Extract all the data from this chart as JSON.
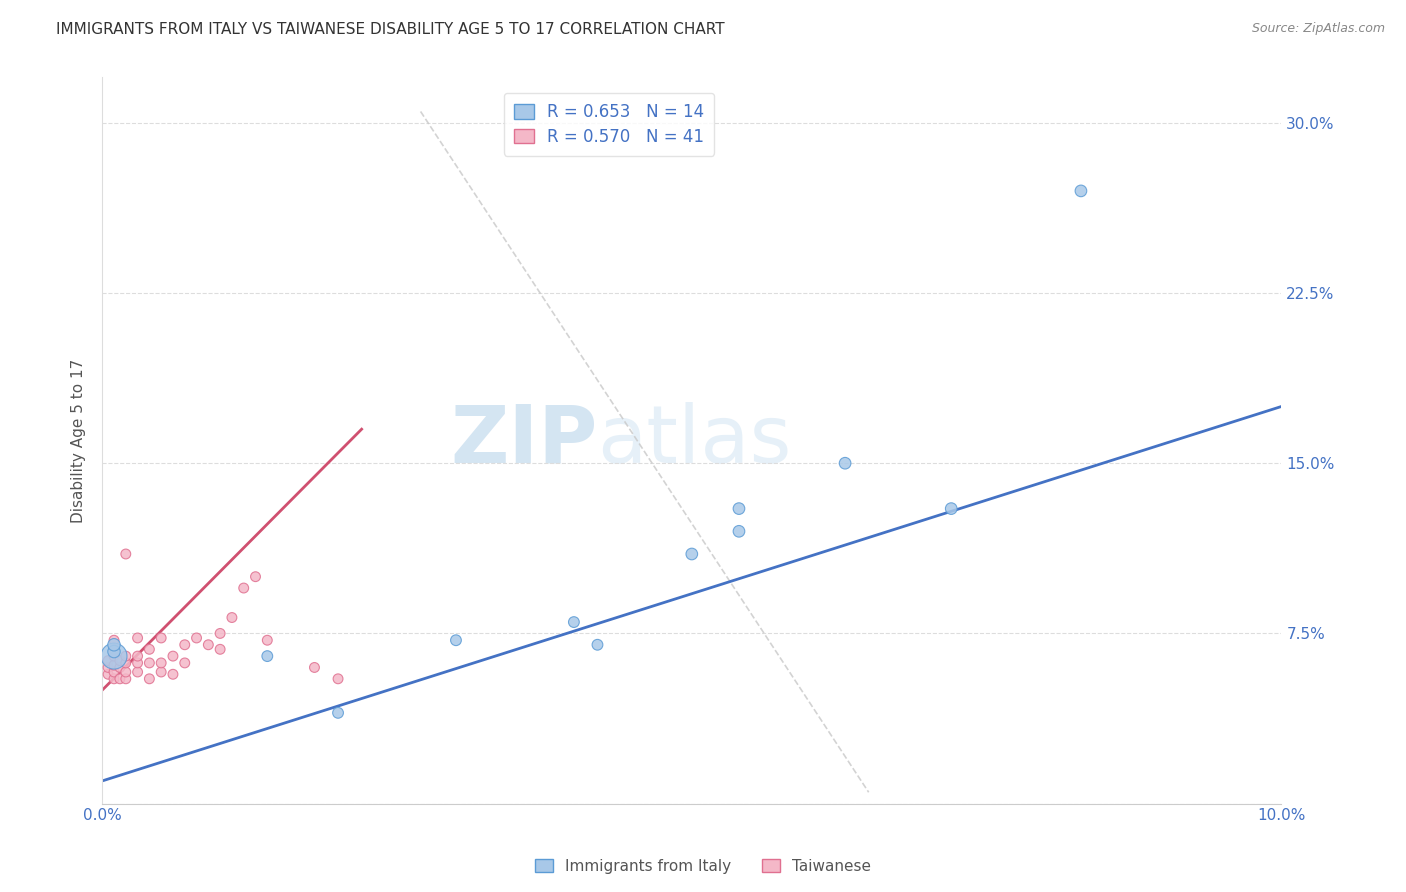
{
  "title": "IMMIGRANTS FROM ITALY VS TAIWANESE DISABILITY AGE 5 TO 17 CORRELATION CHART",
  "source": "Source: ZipAtlas.com",
  "ylabel": "Disability Age 5 to 17",
  "watermark_zip": "ZIP",
  "watermark_atlas": "atlas",
  "blue_label": "Immigrants from Italy",
  "pink_label": "Taiwanese",
  "blue_R": 0.653,
  "blue_N": 14,
  "pink_R": 0.57,
  "pink_N": 41,
  "blue_color": "#a8c8e8",
  "pink_color": "#f4b8c8",
  "blue_edge_color": "#5b9bd5",
  "pink_edge_color": "#e07090",
  "blue_line_color": "#4472c4",
  "pink_line_color": "#d05070",
  "xmin": 0.0,
  "xmax": 0.1,
  "ymin": 0.0,
  "ymax": 0.32,
  "yticks": [
    0.0,
    0.075,
    0.15,
    0.225,
    0.3
  ],
  "ytick_labels_right": [
    "",
    "7.5%",
    "15.0%",
    "22.5%",
    "30.0%"
  ],
  "xticks": [
    0.0,
    0.02,
    0.04,
    0.06,
    0.08,
    0.1
  ],
  "xtick_labels": [
    "0.0%",
    "",
    "",
    "",
    "",
    "10.0%"
  ],
  "blue_points_x": [
    0.001,
    0.001,
    0.001,
    0.014,
    0.02,
    0.03,
    0.04,
    0.042,
    0.05,
    0.054,
    0.054,
    0.063,
    0.072,
    0.083
  ],
  "blue_points_y": [
    0.065,
    0.067,
    0.07,
    0.065,
    0.04,
    0.072,
    0.08,
    0.07,
    0.11,
    0.12,
    0.13,
    0.15,
    0.13,
    0.27
  ],
  "blue_sizes": [
    350,
    80,
    80,
    60,
    60,
    60,
    60,
    60,
    70,
    70,
    70,
    70,
    70,
    70
  ],
  "pink_points_x": [
    0.0005,
    0.0005,
    0.0005,
    0.001,
    0.001,
    0.001,
    0.001,
    0.001,
    0.001,
    0.0015,
    0.0015,
    0.0015,
    0.002,
    0.002,
    0.002,
    0.002,
    0.002,
    0.003,
    0.003,
    0.003,
    0.003,
    0.004,
    0.004,
    0.004,
    0.005,
    0.005,
    0.005,
    0.006,
    0.006,
    0.007,
    0.007,
    0.008,
    0.009,
    0.01,
    0.01,
    0.011,
    0.012,
    0.013,
    0.014,
    0.018,
    0.02
  ],
  "pink_points_y": [
    0.057,
    0.06,
    0.063,
    0.055,
    0.058,
    0.061,
    0.065,
    0.068,
    0.072,
    0.055,
    0.06,
    0.063,
    0.055,
    0.058,
    0.062,
    0.11,
    0.065,
    0.058,
    0.062,
    0.065,
    0.073,
    0.055,
    0.062,
    0.068,
    0.058,
    0.062,
    0.073,
    0.057,
    0.065,
    0.062,
    0.07,
    0.073,
    0.07,
    0.068,
    0.075,
    0.082,
    0.095,
    0.1,
    0.072,
    0.06,
    0.055
  ],
  "pink_sizes": [
    50,
    50,
    50,
    50,
    50,
    50,
    50,
    50,
    50,
    50,
    50,
    50,
    50,
    50,
    50,
    50,
    50,
    50,
    50,
    50,
    50,
    50,
    50,
    50,
    50,
    50,
    50,
    50,
    50,
    50,
    50,
    50,
    50,
    50,
    50,
    50,
    50,
    50,
    50,
    50,
    50
  ],
  "blue_line_x": [
    0.0,
    0.1
  ],
  "blue_line_y": [
    0.01,
    0.175
  ],
  "pink_line_x": [
    0.0,
    0.022
  ],
  "pink_line_y": [
    0.05,
    0.165
  ],
  "ref_line_x": [
    0.027,
    0.065
  ],
  "ref_line_y": [
    0.305,
    0.005
  ],
  "title_fontsize": 11,
  "axis_label_fontsize": 11,
  "tick_fontsize": 11,
  "legend_fontsize": 12
}
